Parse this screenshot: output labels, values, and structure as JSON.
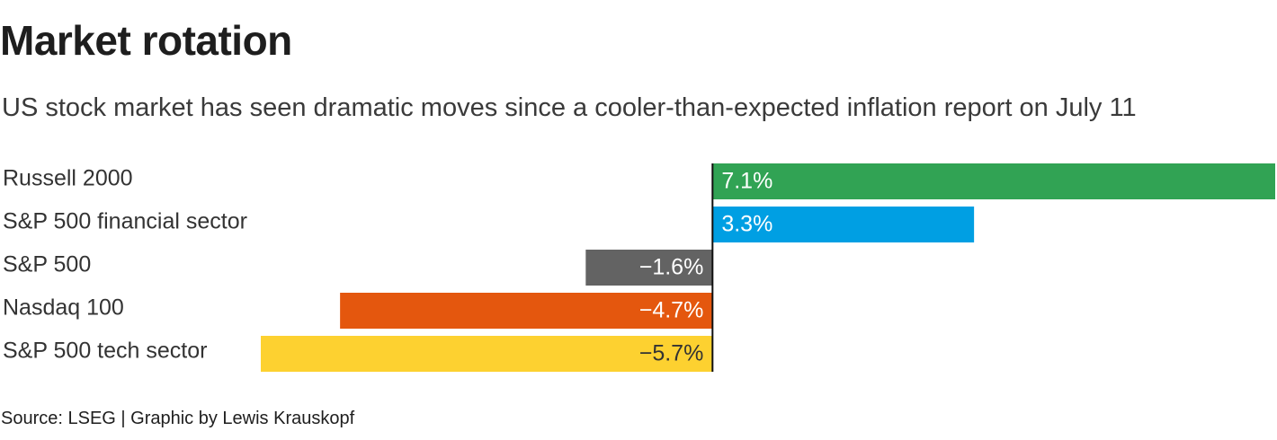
{
  "title": "Market rotation",
  "subtitle": "US stock market has seen dramatic moves since a cooler-than-expected inflation report on July 11",
  "source": "Source: LSEG | Graphic by Lewis Krauskopf",
  "chart_data": {
    "type": "bar",
    "orientation": "horizontal",
    "categories": [
      "Russell 2000",
      "S&P 500 financial sector",
      "S&P 500",
      "Nasdaq 100",
      "S&P 500 tech sector"
    ],
    "values": [
      7.1,
      3.3,
      -1.6,
      -4.7,
      -5.7
    ],
    "data_labels": [
      "7.1%",
      "3.3%",
      "−1.6%",
      "−4.7%",
      "−5.7%"
    ],
    "colors": [
      "#31a354",
      "#009fe3",
      "#636363",
      "#e4570e",
      "#fdd130"
    ],
    "label_colors": [
      "#ffffff",
      "#ffffff",
      "#ffffff",
      "#ffffff",
      "#333333"
    ],
    "zero_line_color": "#111111",
    "xlim": [
      -5.7,
      7.1
    ],
    "title": "Market rotation",
    "xlabel": "",
    "ylabel": "",
    "grid": false,
    "legend": "none",
    "unit": "%"
  }
}
